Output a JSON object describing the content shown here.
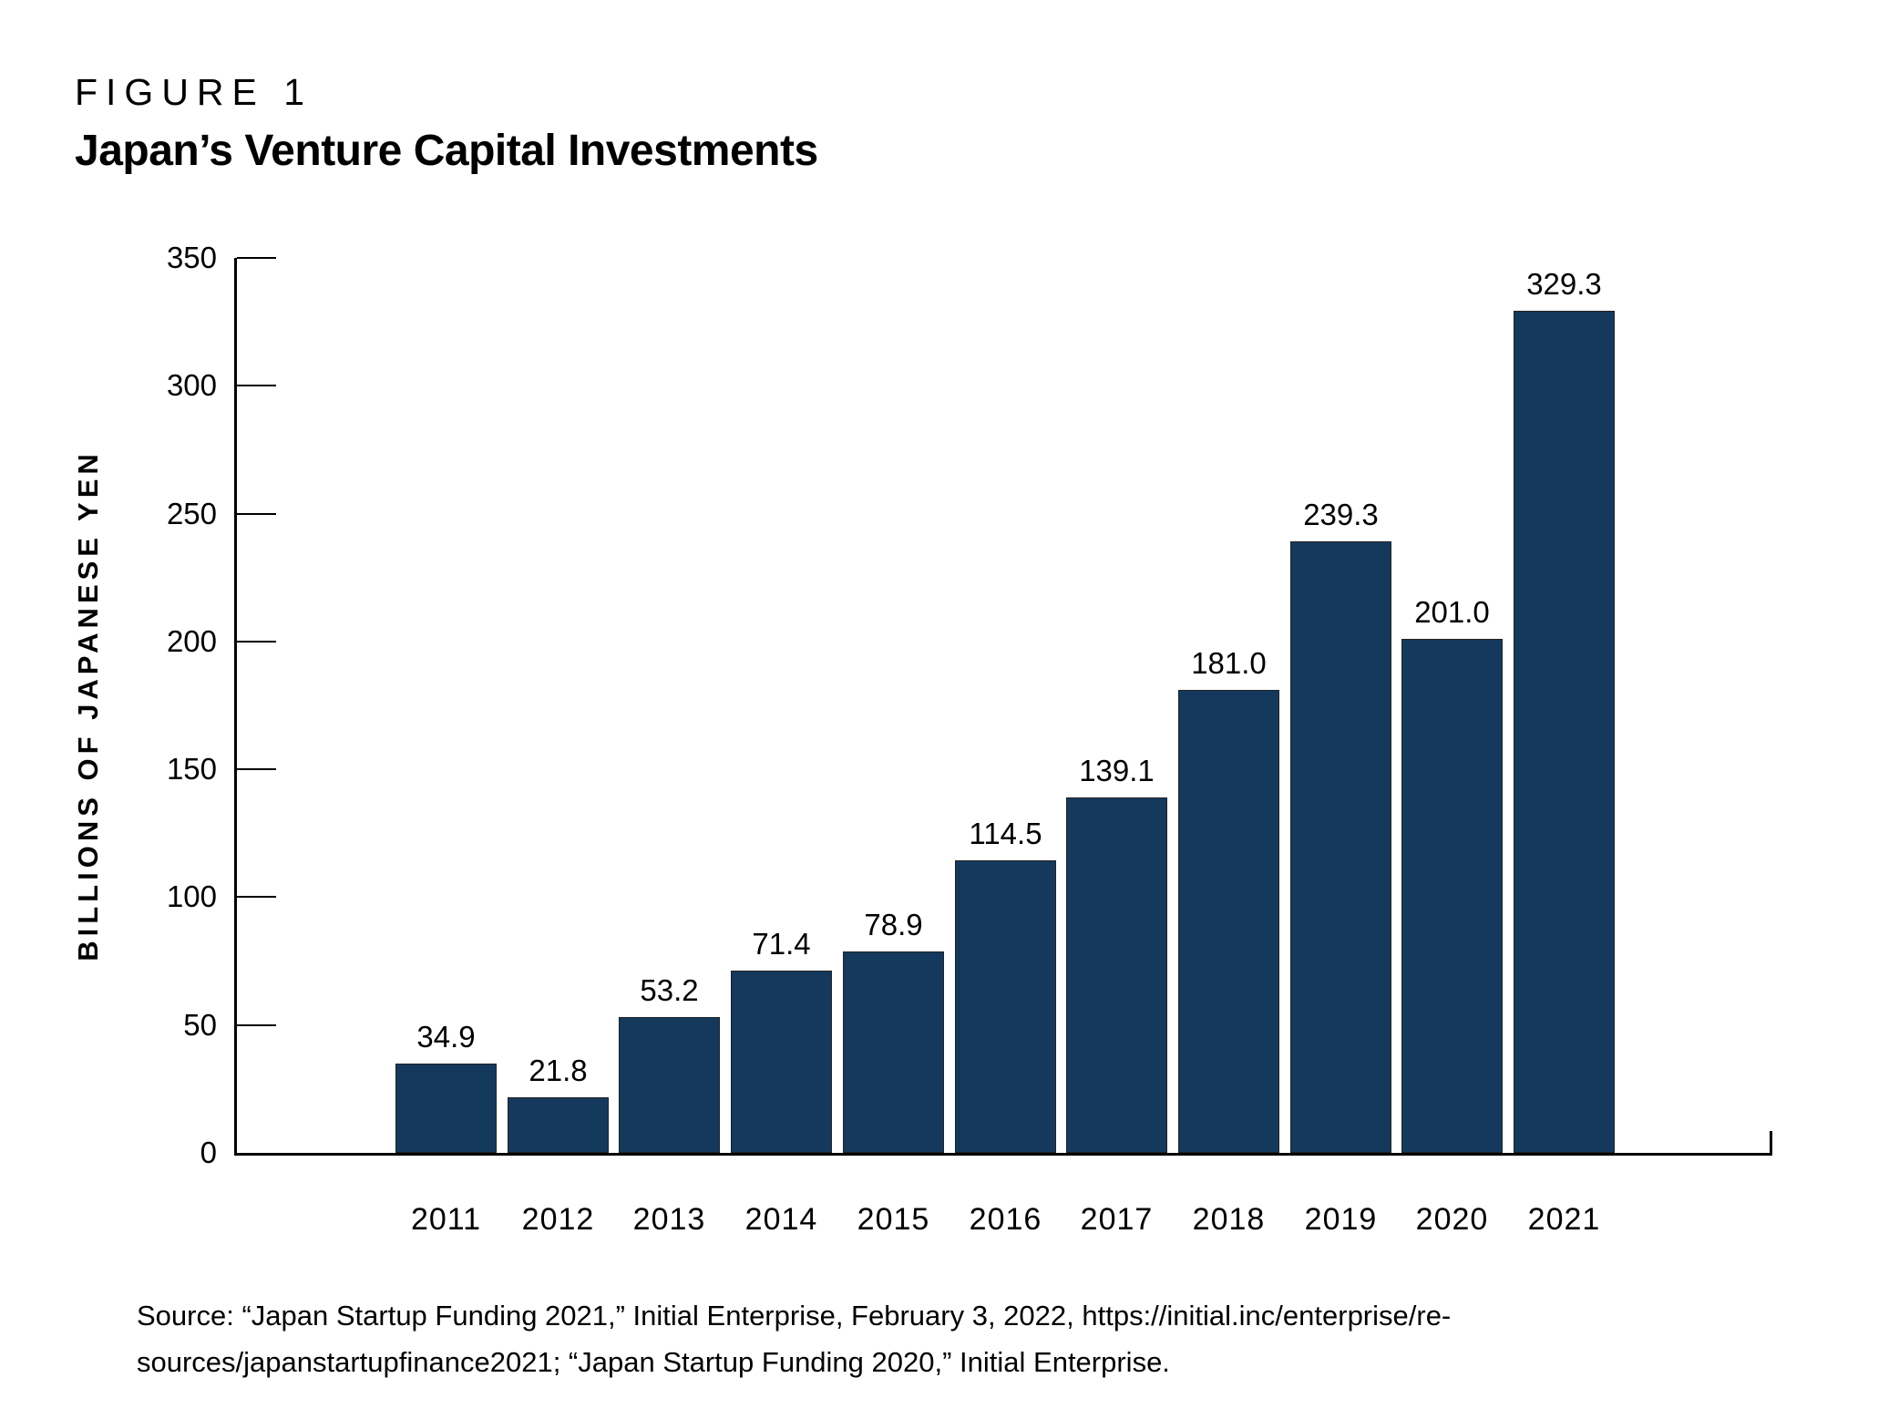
{
  "figure": {
    "label": "FIGURE 1",
    "title": "Japan’s Venture Capital Investments"
  },
  "chart_data": {
    "type": "bar",
    "title": "Japan’s Venture Capital Investments",
    "categories": [
      "2011",
      "2012",
      "2013",
      "2014",
      "2015",
      "2016",
      "2017",
      "2018",
      "2019",
      "2020",
      "2021"
    ],
    "values": [
      34.9,
      21.8,
      53.2,
      71.4,
      78.9,
      114.5,
      139.1,
      181.0,
      239.3,
      201.0,
      329.3
    ],
    "labels": [
      "34.9",
      "21.8",
      "53.2",
      "71.4",
      "78.9",
      "114.5",
      "139.1",
      "181.0",
      "239.3",
      "201.0",
      "329.3"
    ],
    "xlabel": "",
    "ylabel": "BILLIONS OF JAPANESE YEN",
    "ylim": [
      0,
      350
    ],
    "yticks": [
      0,
      50,
      100,
      150,
      200,
      250,
      300,
      350
    ],
    "ytick_labels": [
      "0",
      "50",
      "100",
      "150",
      "200",
      "250",
      "300",
      "350"
    ],
    "grid": false,
    "legend": false,
    "bar_color": "#14395D",
    "bar_border_color": "#222222",
    "axis_color": "#000000",
    "text_color": "#000000"
  },
  "source": {
    "lines": [
      "Source: “Japan Startup Funding 2021,” Initial Enterprise, February 3, 2022, https://initial.inc/enterprise/re-",
      "sources/japanstartupfinance2021; “Japan Startup Funding 2020,” Initial Enterprise."
    ]
  }
}
